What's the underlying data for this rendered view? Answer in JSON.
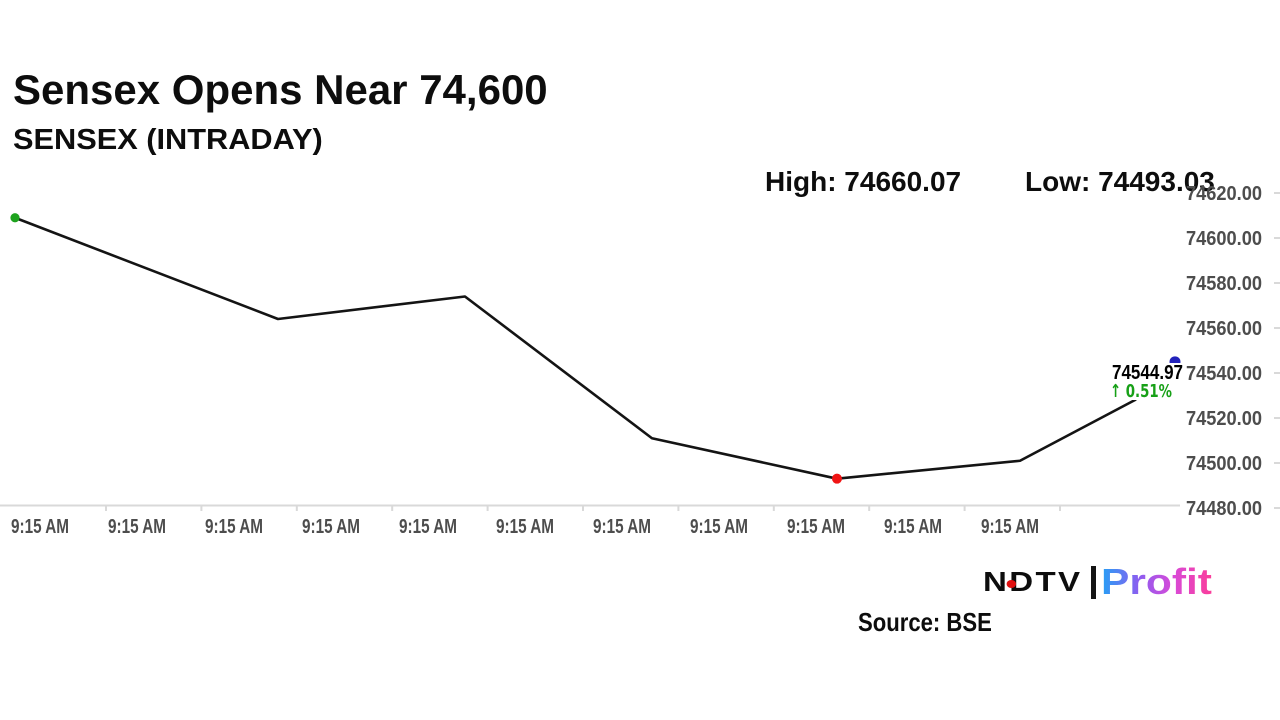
{
  "page": {
    "source": "Source: BSE",
    "logo": {
      "ndtv": "NDTV",
      "separator": "|",
      "profit": "Profit"
    }
  },
  "chart_data": {
    "type": "line",
    "title": "Sensex Opens Near 74,600",
    "subtitle": "SENSEX (INTRADAY)",
    "high": 74660.07,
    "low": 74493.03,
    "high_label": "High: 74660.07",
    "low_label": "Low: 74493.03",
    "last_price": 74544.97,
    "last_price_label": "74544.97",
    "change_label": "↑ 0.51%",
    "ylim": [
      74480,
      74620
    ],
    "y_ticks": [
      "74620.00",
      "74600.00",
      "74580.00",
      "74560.00",
      "74540.00",
      "74520.00",
      "74500.00",
      "74480.00"
    ],
    "x_ticks": [
      "9:15 AM",
      "9:15 AM",
      "9:15 AM",
      "9:15 AM",
      "9:15 AM",
      "9:15 AM",
      "9:15 AM",
      "9:15 AM",
      "9:15 AM",
      "9:15 AM",
      "9:15 AM"
    ],
    "series": [
      {
        "name": "SENSEX",
        "points": [
          {
            "t": 0.0,
            "v": 74609
          },
          {
            "t": 0.2267,
            "v": 74564
          },
          {
            "t": 0.3879,
            "v": 74574
          },
          {
            "t": 0.5491,
            "v": 74511
          },
          {
            "t": 0.7086,
            "v": 74493.03
          },
          {
            "t": 0.8664,
            "v": 74501
          },
          {
            "t": 0.9655,
            "v": 74528
          },
          {
            "t": 1.0,
            "v": 74544.97
          }
        ]
      }
    ],
    "markers": [
      {
        "point": 0,
        "color": "#1ea31e",
        "name": "open-marker-dot"
      },
      {
        "point": 4,
        "color": "#f01414",
        "name": "low-marker-dot"
      },
      {
        "point": 7,
        "color": "#2222bb",
        "name": "last-marker-dot"
      }
    ],
    "colors": {
      "line": "#141414",
      "axis_text": "#4d4d4d",
      "axis_line": "#d9d9d9",
      "change_green": "#17a017"
    }
  }
}
